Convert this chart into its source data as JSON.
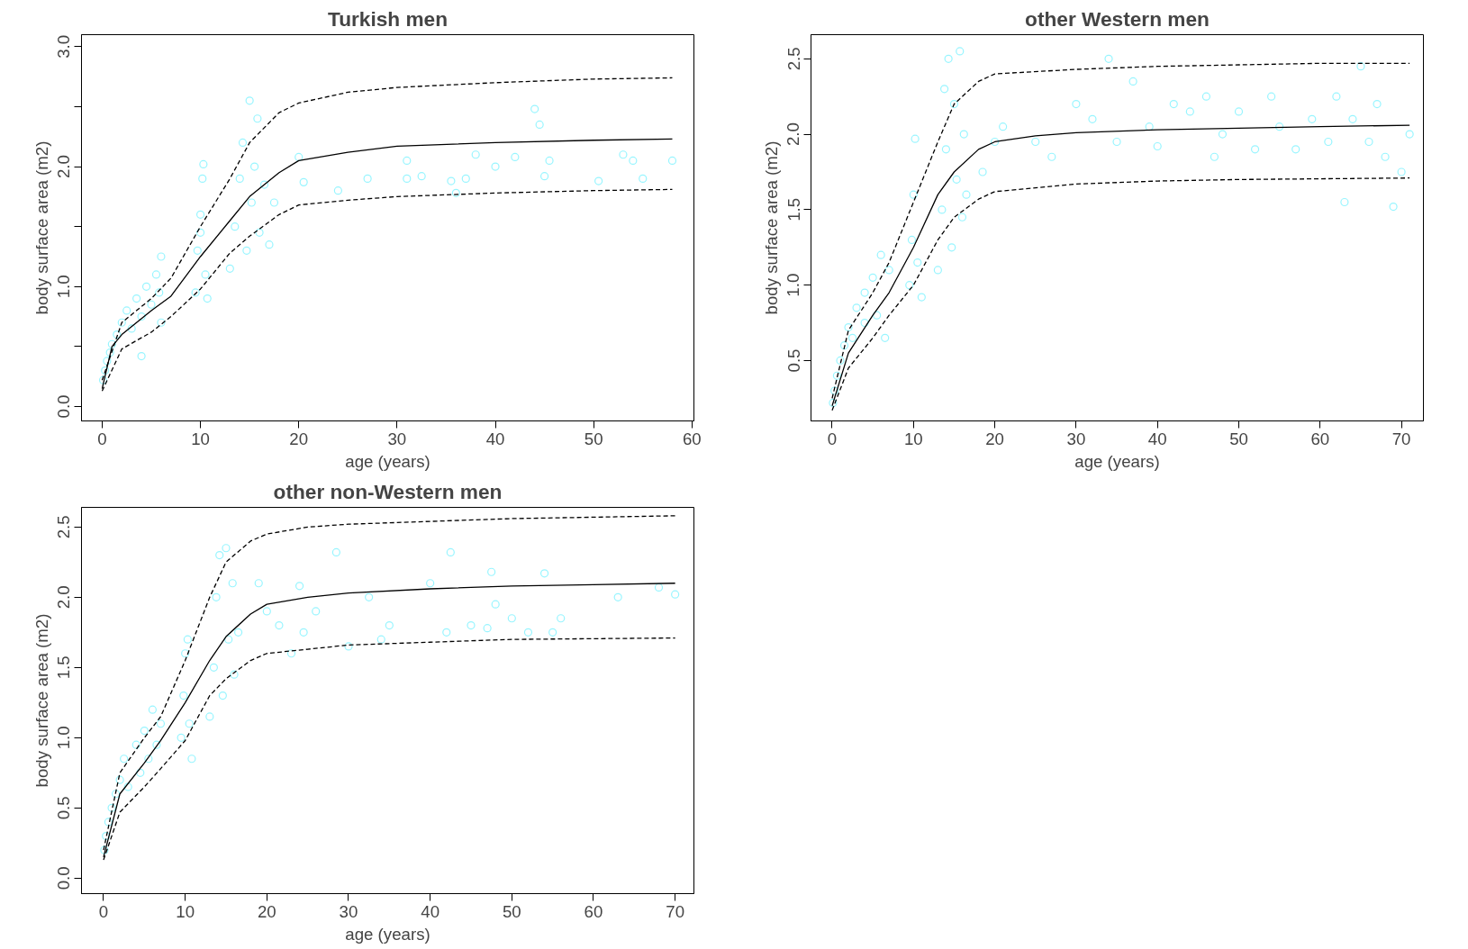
{
  "chart_data": [
    {
      "type": "scatter",
      "title": "Turkish men",
      "xlabel": "age (years)",
      "ylabel": "body surface area (m2)",
      "grid": false,
      "xlim": [
        -2.1,
        60.2
      ],
      "ylim": [
        -0.12,
        3.1
      ],
      "xticks": [
        0,
        10,
        20,
        30,
        40,
        50,
        60
      ],
      "yticks": [
        {
          "value": 0,
          "label": "0.0"
        },
        {
          "value": 0.5,
          "label": null
        },
        {
          "value": 1,
          "label": "1.0"
        },
        {
          "value": 1.5,
          "label": null
        },
        {
          "value": 2,
          "label": "2.0"
        },
        {
          "value": 2.5,
          "label": null
        },
        {
          "value": 3,
          "label": "3.0"
        }
      ],
      "series": [
        {
          "type": "scatter",
          "marker": "circle",
          "color": "#98f5ff",
          "x": [
            0.1,
            0.3,
            0.5,
            0.8,
            1,
            1.5,
            2,
            2.5,
            3,
            3.5,
            4,
            4,
            4.5,
            5,
            5.5,
            6,
            6,
            5.8,
            9.5,
            9.7,
            10,
            10.2,
            10.3,
            10.5,
            10.7,
            10,
            13,
            13.5,
            14,
            14.3,
            14.7,
            15,
            15.2,
            15.5,
            15.8,
            16,
            16.5,
            17,
            17.5,
            20,
            20.5,
            24,
            27,
            31,
            31,
            32.5,
            35.5,
            36,
            37,
            38,
            40,
            42,
            44,
            44.5,
            45,
            45.5,
            50.5,
            53,
            54,
            55,
            58
          ],
          "values": [
            0.22,
            0.3,
            0.38,
            0.45,
            0.52,
            0.6,
            0.7,
            0.8,
            0.65,
            0.9,
            0.75,
            0.42,
            1.0,
            0.85,
            1.1,
            1.25,
            0.7,
            0.95,
            0.95,
            1.3,
            1.6,
            1.9,
            2.02,
            1.1,
            0.9,
            1.45,
            1.15,
            1.5,
            1.9,
            2.2,
            1.3,
            2.55,
            1.7,
            2.0,
            2.4,
            1.45,
            1.85,
            1.35,
            1.7,
            2.08,
            1.87,
            1.8,
            1.9,
            2.05,
            1.9,
            1.92,
            1.88,
            1.78,
            1.9,
            2.1,
            2.0,
            2.08,
            2.48,
            2.35,
            1.92,
            2.05,
            1.88,
            2.1,
            2.05,
            1.9,
            2.05
          ]
        },
        {
          "type": "line",
          "line_style": "solid",
          "color": "#000000",
          "x": [
            0,
            1,
            2,
            5,
            7,
            10,
            13,
            15,
            18,
            20,
            25,
            30,
            40,
            50,
            58
          ],
          "values": [
            0.15,
            0.5,
            0.6,
            0.8,
            0.92,
            1.25,
            1.55,
            1.75,
            1.95,
            2.05,
            2.12,
            2.17,
            2.2,
            2.22,
            2.23
          ]
        },
        {
          "type": "line",
          "line_style": "dashed",
          "color": "#000000",
          "x": [
            0,
            2,
            5,
            7,
            10,
            13,
            15,
            18,
            20,
            25,
            30,
            40,
            50,
            58
          ],
          "values": [
            0.22,
            0.7,
            0.9,
            1.07,
            1.5,
            1.9,
            2.2,
            2.45,
            2.53,
            2.62,
            2.66,
            2.7,
            2.73,
            2.74
          ]
        },
        {
          "type": "line",
          "line_style": "dashed",
          "color": "#000000",
          "x": [
            0,
            2,
            5,
            7,
            10,
            13,
            15,
            18,
            20,
            25,
            30,
            40,
            50,
            58
          ],
          "values": [
            0.13,
            0.48,
            0.62,
            0.75,
            0.98,
            1.28,
            1.42,
            1.6,
            1.68,
            1.72,
            1.75,
            1.78,
            1.8,
            1.81
          ]
        }
      ]
    },
    {
      "type": "scatter",
      "title": "other Western men",
      "xlabel": "age (years)",
      "ylabel": "body surface area (m2)",
      "grid": false,
      "xlim": [
        -2.6,
        72.7
      ],
      "ylim": [
        0.1,
        2.66
      ],
      "xticks": [
        0,
        10,
        20,
        30,
        40,
        50,
        60,
        70
      ],
      "yticks": [
        {
          "value": 0.5,
          "label": "0.5"
        },
        {
          "value": 1,
          "label": "1.0"
        },
        {
          "value": 1.5,
          "label": "1.5"
        },
        {
          "value": 2,
          "label": "2.0"
        },
        {
          "value": 2.5,
          "label": "2.5"
        }
      ],
      "series": [
        {
          "type": "scatter",
          "marker": "circle",
          "color": "#98f5ff",
          "x": [
            0.1,
            0.3,
            0.6,
            1,
            1.5,
            2,
            2.5,
            3,
            4,
            4,
            5,
            5.5,
            6,
            6.5,
            7,
            9.5,
            9.8,
            10,
            10.2,
            10.5,
            11,
            13,
            13.5,
            13.8,
            14,
            14.3,
            14.7,
            15,
            15.3,
            15.7,
            16,
            16.2,
            16.5,
            18.5,
            20,
            21,
            25,
            27,
            30,
            32,
            34,
            35,
            37,
            39,
            40,
            42,
            44,
            46,
            47,
            48,
            50,
            52,
            54,
            55,
            57,
            59,
            61,
            62,
            63,
            64,
            65,
            66,
            67,
            68,
            69,
            70,
            71
          ],
          "values": [
            0.22,
            0.3,
            0.4,
            0.5,
            0.6,
            0.72,
            0.65,
            0.85,
            0.75,
            0.95,
            1.05,
            0.8,
            1.2,
            0.65,
            1.1,
            1.0,
            1.3,
            1.6,
            1.97,
            1.15,
            0.92,
            1.1,
            1.5,
            2.3,
            1.9,
            2.5,
            1.25,
            2.2,
            1.7,
            2.55,
            1.45,
            2.0,
            1.6,
            1.75,
            1.95,
            2.05,
            1.95,
            1.85,
            2.2,
            2.1,
            2.5,
            1.95,
            2.35,
            2.05,
            1.92,
            2.2,
            2.15,
            2.25,
            1.85,
            2.0,
            2.15,
            1.9,
            2.25,
            2.05,
            1.9,
            2.1,
            1.95,
            2.25,
            1.55,
            2.1,
            2.45,
            1.95,
            2.2,
            1.85,
            1.52,
            1.75,
            2.0
          ]
        },
        {
          "type": "line",
          "line_style": "solid",
          "color": "#000000",
          "x": [
            0,
            2,
            5,
            7,
            10,
            13,
            15,
            18,
            20,
            25,
            30,
            40,
            50,
            60,
            71
          ],
          "values": [
            0.2,
            0.55,
            0.8,
            0.95,
            1.25,
            1.6,
            1.75,
            1.9,
            1.95,
            1.99,
            2.01,
            2.03,
            2.04,
            2.05,
            2.06
          ]
        },
        {
          "type": "line",
          "line_style": "dashed",
          "color": "#000000",
          "x": [
            0,
            2,
            5,
            7,
            10,
            13,
            15,
            18,
            20,
            30,
            40,
            50,
            60,
            71
          ],
          "values": [
            0.25,
            0.7,
            0.95,
            1.15,
            1.55,
            1.95,
            2.2,
            2.35,
            2.4,
            2.43,
            2.45,
            2.46,
            2.47,
            2.47
          ]
        },
        {
          "type": "line",
          "line_style": "dashed",
          "color": "#000000",
          "x": [
            0,
            2,
            5,
            7,
            10,
            13,
            15,
            18,
            20,
            30,
            40,
            50,
            71
          ],
          "values": [
            0.17,
            0.45,
            0.65,
            0.8,
            1.0,
            1.3,
            1.45,
            1.57,
            1.62,
            1.67,
            1.69,
            1.7,
            1.71
          ]
        }
      ]
    },
    {
      "type": "scatter",
      "title": "other non-Western men",
      "xlabel": "age (years)",
      "ylabel": "body surface area (m2)",
      "grid": false,
      "xlim": [
        -2.7,
        72.3
      ],
      "ylim": [
        -0.11,
        2.64
      ],
      "xticks": [
        0,
        10,
        20,
        30,
        40,
        50,
        60,
        70
      ],
      "yticks": [
        {
          "value": 0,
          "label": "0.0"
        },
        {
          "value": 0.5,
          "label": "0.5"
        },
        {
          "value": 1,
          "label": "1.0"
        },
        {
          "value": 1.5,
          "label": "1.5"
        },
        {
          "value": 2,
          "label": "2.0"
        },
        {
          "value": 2.5,
          "label": "2.5"
        }
      ],
      "series": [
        {
          "type": "scatter",
          "marker": "circle",
          "color": "#98f5ff",
          "x": [
            0.1,
            0.3,
            0.6,
            1,
            1.5,
            2,
            2.5,
            3,
            4,
            4.5,
            5,
            5.5,
            6,
            6.5,
            7,
            9.5,
            9.8,
            10,
            10.3,
            10.5,
            10.8,
            13,
            13.5,
            13.8,
            14.2,
            14.6,
            15,
            15.3,
            15.8,
            16,
            16.5,
            19,
            20,
            21.5,
            23,
            24,
            24.5,
            26,
            28.5,
            30,
            32.5,
            34,
            35,
            40,
            42,
            42.5,
            45,
            47,
            47.5,
            48,
            50,
            52,
            54,
            55,
            56,
            63,
            68,
            70
          ],
          "values": [
            0.2,
            0.3,
            0.4,
            0.5,
            0.6,
            0.7,
            0.85,
            0.65,
            0.95,
            0.75,
            1.05,
            0.85,
            1.2,
            0.95,
            1.1,
            1.0,
            1.3,
            1.6,
            1.7,
            1.1,
            0.85,
            1.15,
            1.5,
            2.0,
            2.3,
            1.3,
            2.35,
            1.7,
            2.1,
            1.45,
            1.75,
            2.1,
            1.9,
            1.8,
            1.6,
            2.08,
            1.75,
            1.9,
            2.32,
            1.65,
            2.0,
            1.7,
            1.8,
            2.1,
            1.75,
            2.32,
            1.8,
            1.78,
            2.18,
            1.95,
            1.85,
            1.75,
            2.17,
            1.75,
            1.85,
            2.0,
            2.07,
            2.02
          ]
        },
        {
          "type": "line",
          "line_style": "solid",
          "color": "#000000",
          "x": [
            0,
            2,
            5,
            7,
            10,
            13,
            15,
            18,
            20,
            25,
            30,
            40,
            50,
            60,
            70
          ],
          "values": [
            0.15,
            0.6,
            0.82,
            0.98,
            1.25,
            1.55,
            1.72,
            1.88,
            1.95,
            2.0,
            2.03,
            2.06,
            2.08,
            2.09,
            2.1
          ]
        },
        {
          "type": "line",
          "line_style": "dashed",
          "color": "#000000",
          "x": [
            0,
            2,
            5,
            7,
            10,
            13,
            15,
            18,
            20,
            25,
            30,
            40,
            50,
            60,
            70
          ],
          "values": [
            0.2,
            0.75,
            1.0,
            1.15,
            1.55,
            2.0,
            2.25,
            2.4,
            2.45,
            2.5,
            2.52,
            2.54,
            2.56,
            2.57,
            2.58
          ]
        },
        {
          "type": "line",
          "line_style": "dashed",
          "color": "#000000",
          "x": [
            0,
            2,
            5,
            7,
            10,
            13,
            15,
            18,
            20,
            25,
            30,
            40,
            50,
            70
          ],
          "values": [
            0.13,
            0.47,
            0.65,
            0.78,
            0.98,
            1.3,
            1.42,
            1.55,
            1.6,
            1.63,
            1.66,
            1.68,
            1.7,
            1.71
          ]
        }
      ]
    }
  ]
}
